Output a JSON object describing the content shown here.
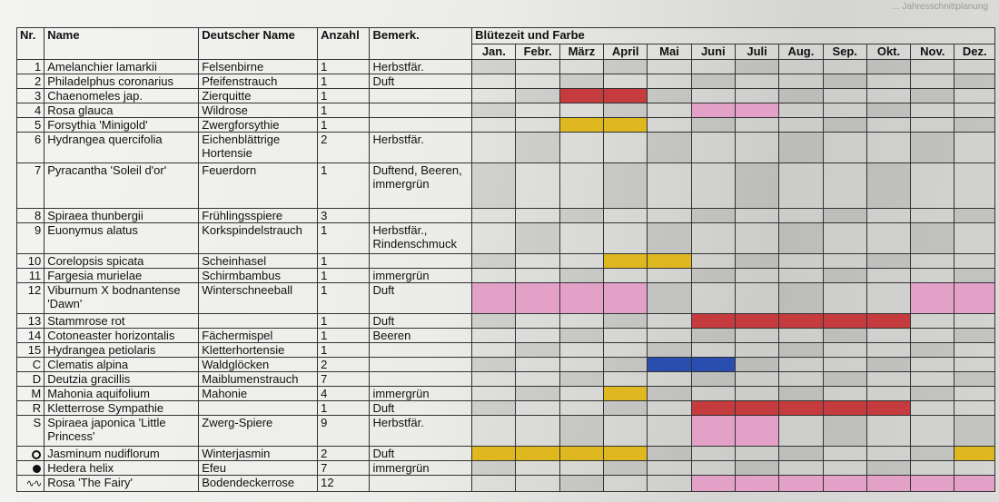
{
  "header_note": "... Jahresschnittplanung",
  "colors": {
    "red": "#c53b3e",
    "yellow": "#dfb81f",
    "pink": "#e3a1c8",
    "blue": "#2a4db0"
  },
  "columns": {
    "nr": "Nr.",
    "name": "Name",
    "deutsch": "Deutscher Name",
    "anzahl": "Anzahl",
    "bemerk": "Bemerk.",
    "bluete": "Blütezeit und Farbe"
  },
  "months": [
    "Jan.",
    "Febr.",
    "März",
    "April",
    "Mai",
    "Juni",
    "Juli",
    "Aug.",
    "Sep.",
    "Okt.",
    "Nov.",
    "Dez."
  ],
  "rows": [
    {
      "nr": "1",
      "name": "Amelanchier lamarkii",
      "deutsch": "Felsenbirne",
      "anzahl": "1",
      "bemerk": "Herbstfär.",
      "bloom": {}
    },
    {
      "nr": "2",
      "name": "Philadelphus coronarius",
      "deutsch": "Pfeifenstrauch",
      "anzahl": "1",
      "bemerk": "Duft",
      "bloom": {}
    },
    {
      "nr": "3",
      "name": "Chaenomeles jap.",
      "deutsch": "Zierquitte",
      "anzahl": "1",
      "bemerk": "",
      "bloom": {
        "2": "red",
        "3": "red"
      }
    },
    {
      "nr": "4",
      "name": "Rosa glauca",
      "deutsch": "Wildrose",
      "anzahl": "1",
      "bemerk": "",
      "bloom": {
        "5": "pink",
        "6": "pink"
      }
    },
    {
      "nr": "5",
      "name": "Forsythia 'Minigold'",
      "deutsch": "Zwergforsythie",
      "anzahl": "1",
      "bemerk": "",
      "bloom": {
        "2": "yellow",
        "3": "yellow"
      }
    },
    {
      "nr": "6",
      "name": "Hydrangea quercifolia",
      "deutsch": "Eichenblättrige Hortensie",
      "anzahl": "2",
      "bemerk": "Herbstfär.",
      "bloom": {}
    },
    {
      "nr": "7",
      "name": "Pyracantha 'Soleil d'or'",
      "deutsch": "Feuerdorn",
      "anzahl": "1",
      "bemerk": "Duftend, Beeren, immergrün",
      "bloom": {}
    },
    {
      "nr": "8",
      "name": "Spiraea thunbergii",
      "deutsch": "Frühlingsspiere",
      "anzahl": "3",
      "bemerk": "",
      "bloom": {}
    },
    {
      "nr": "9",
      "name": "Euonymus alatus",
      "deutsch": "Korkspindelstrauch",
      "anzahl": "1",
      "bemerk": "Herbstfär., Rindenschmuck",
      "bloom": {}
    },
    {
      "nr": "10",
      "name": "Corelopsis spicata",
      "deutsch": "Scheinhasel",
      "anzahl": "1",
      "bemerk": "",
      "bloom": {
        "3": "yellow",
        "4": "yellow"
      }
    },
    {
      "nr": "11",
      "name": "Fargesia murielae",
      "deutsch": "Schirmbambus",
      "anzahl": "1",
      "bemerk": "immergrün",
      "bloom": {}
    },
    {
      "nr": "12",
      "name": "Viburnum X bodnantense 'Dawn'",
      "deutsch": "Winterschneeball",
      "anzahl": "1",
      "bemerk": "Duft",
      "bloom": {
        "0": "pink",
        "1": "pink",
        "2": "pink",
        "3": "pink",
        "10": "pink",
        "11": "pink"
      }
    },
    {
      "nr": "13",
      "name": "Stammrose rot",
      "deutsch": "",
      "anzahl": "1",
      "bemerk": "Duft",
      "bloom": {
        "5": "red",
        "6": "red",
        "7": "red",
        "8": "red",
        "9": "red"
      }
    },
    {
      "nr": "14",
      "name": "Cotoneaster horizontalis",
      "deutsch": "Fächermispel",
      "anzahl": "1",
      "bemerk": "Beeren",
      "bloom": {}
    },
    {
      "nr": "15",
      "name": "Hydrangea petiolaris",
      "deutsch": "Kletterhortensie",
      "anzahl": "1",
      "bemerk": "",
      "bloom": {}
    },
    {
      "nr": "C",
      "name": "Clematis alpina",
      "deutsch": "Waldglöcken",
      "anzahl": "2",
      "bemerk": "",
      "bloom": {
        "4": "blue",
        "5": "blue"
      }
    },
    {
      "nr": "D",
      "name": "Deutzia gracillis",
      "deutsch": "Maiblumenstrauch",
      "anzahl": "7",
      "bemerk": "",
      "bloom": {}
    },
    {
      "nr": "M",
      "name": "Mahonia aquifolium",
      "deutsch": "Mahonie",
      "anzahl": "4",
      "bemerk": "immergrün",
      "bloom": {
        "3": "yellow"
      }
    },
    {
      "nr": "R",
      "name": "Kletterrose Sympathie",
      "deutsch": "",
      "anzahl": "1",
      "bemerk": "Duft",
      "bloom": {
        "5": "red",
        "6": "red",
        "7": "red",
        "8": "red",
        "9": "red"
      }
    },
    {
      "nr": "S",
      "name": "Spiraea japonica 'Little Princess'",
      "deutsch": "Zwerg-Spiere",
      "anzahl": "9",
      "bemerk": "Herbstfär.",
      "bloom": {
        "5": "pink",
        "6": "pink"
      }
    },
    {
      "nr": "",
      "sym": "ring",
      "name": "Jasminum nudiflorum",
      "deutsch": "Winterjasmin",
      "anzahl": "2",
      "bemerk": "Duft",
      "bloom": {
        "0": "yellow",
        "1": "yellow",
        "2": "yellow",
        "3": "yellow",
        "11": "yellow"
      }
    },
    {
      "nr": "",
      "sym": "dot",
      "name": "Hedera helix",
      "deutsch": "Efeu",
      "anzahl": "7",
      "bemerk": "immergrün",
      "bloom": {}
    },
    {
      "nr": "",
      "sym": "wave",
      "name": "Rosa 'The Fairy'",
      "deutsch": "Bodendeckerrose",
      "anzahl": "12",
      "bemerk": "",
      "bloom": {
        "5": "pink",
        "6": "pink",
        "7": "pink",
        "8": "pink",
        "9": "pink",
        "10": "pink",
        "11": "pink"
      }
    }
  ]
}
